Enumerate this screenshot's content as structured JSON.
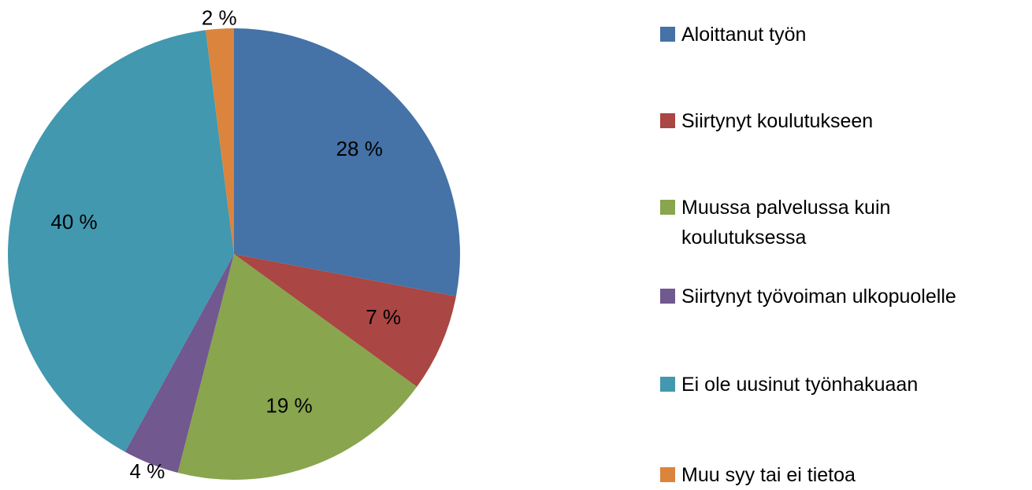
{
  "chart_data": {
    "type": "pie",
    "categories": [
      "Aloittanut työn",
      "Siirtynyt koulutukseen",
      "Muussa palvelussa kuin koulutuksessa",
      "Siirtynyt työvoiman ulkopuolelle",
      "Ei ole uusinut työnhakuaan",
      "Muu syy tai ei tietoa"
    ],
    "values": [
      28,
      7,
      19,
      4,
      40,
      2
    ],
    "value_labels": [
      "28 %",
      "7 %",
      "19 %",
      "4 %",
      "40 %",
      "2 %"
    ],
    "colors": [
      "#4572a7",
      "#aa4643",
      "#89a54e",
      "#71588f",
      "#4198af",
      "#db843d"
    ],
    "legend": "right"
  }
}
